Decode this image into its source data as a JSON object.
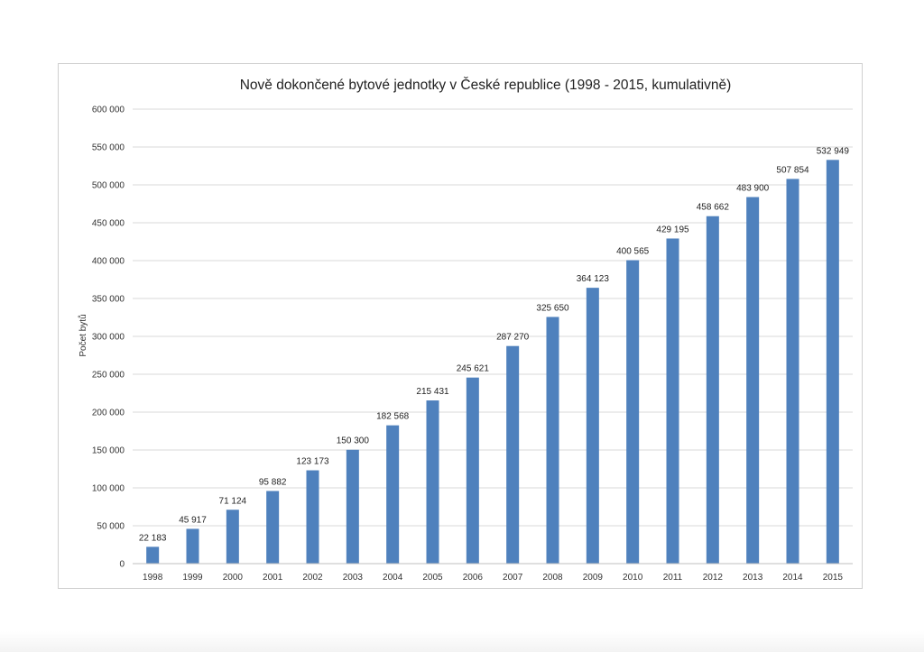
{
  "chart_data": {
    "type": "bar",
    "title": "Nově dokončené bytové jednotky v České republice (1998  - 2015, kumulativně)",
    "xlabel": "",
    "ylabel": "Počet bytů",
    "ylim": [
      0,
      600000
    ],
    "yticks": [
      0,
      50000,
      100000,
      150000,
      200000,
      250000,
      300000,
      350000,
      400000,
      450000,
      500000,
      550000,
      600000
    ],
    "ytick_labels": [
      "0",
      "50 000",
      "100 000",
      "150 000",
      "200 000",
      "250 000",
      "300 000",
      "350 000",
      "400 000",
      "450 000",
      "500 000",
      "550 000",
      "600 000"
    ],
    "categories": [
      "1998",
      "1999",
      "2000",
      "2001",
      "2002",
      "2003",
      "2004",
      "2005",
      "2006",
      "2007",
      "2008",
      "2009",
      "2010",
      "2011",
      "2012",
      "2013",
      "2014",
      "2015"
    ],
    "values": [
      22183,
      45917,
      71124,
      95882,
      123173,
      150300,
      182568,
      215431,
      245621,
      287270,
      325650,
      364123,
      400565,
      429195,
      458662,
      483900,
      507854,
      532949
    ],
    "data_labels": [
      "22 183",
      "45 917",
      "71 124",
      "95 882",
      "123 173",
      "150 300",
      "182 568",
      "215 431",
      "245 621",
      "287 270",
      "325 650",
      "364 123",
      "400 565",
      "429 195",
      "458 662",
      "483 900",
      "507 854",
      "532 949"
    ],
    "grid": true,
    "legend": "none",
    "bar_color": "#4f81bd",
    "grid_color": "#d9d9d9"
  }
}
